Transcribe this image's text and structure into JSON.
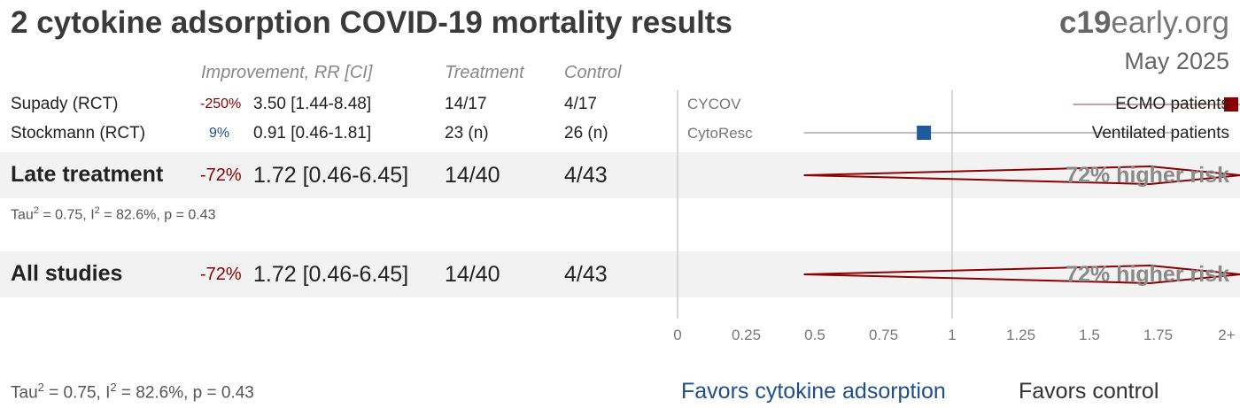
{
  "header": {
    "title": "2 cytokine adsorption COVID-19 mortality results",
    "brand_bold": "c19",
    "brand_rest": "early.org",
    "date": "May 2025"
  },
  "columns": {
    "improvement": "Improvement, RR [CI]",
    "treatment": "Treatment",
    "control": "Control"
  },
  "studies": [
    {
      "name": "Supady (RCT)",
      "improvement": "-250%",
      "rr_ci": "3.50 [1.44-8.48]",
      "treatment": "14/17",
      "control": "4/17",
      "plot_label": "CYCOV",
      "subgroup": "ECMO patients"
    },
    {
      "name": "Stockmann (RCT)",
      "improvement": "9%",
      "rr_ci": "0.91 [0.46-1.81]",
      "treatment": "23 (n)",
      "control": "26 (n)",
      "plot_label": "CytoResc",
      "subgroup": "Ventilated patients"
    }
  ],
  "late": {
    "name": "Late treatment",
    "improvement": "-72%",
    "rr_ci": "1.72 [0.46-6.45]",
    "treatment": "14/40",
    "control": "4/43",
    "risk_text": "72% higher risk"
  },
  "late_stats": {
    "pre": "Tau",
    "sup1": "2",
    "mid": " = 0.75, I",
    "sup2": "2",
    "post": " = 82.6%, p = 0.43"
  },
  "all": {
    "name": "All studies",
    "improvement": "-72%",
    "rr_ci": "1.72 [0.46-6.45]",
    "treatment": "14/40",
    "control": "4/43",
    "risk_text": "72% higher risk"
  },
  "all_stats": {
    "pre": "Tau",
    "sup1": "2",
    "mid": " = 0.75, I",
    "sup2": "2",
    "post": " = 82.6%, p = 0.43"
  },
  "footer": {
    "favors_treatment": "Favors cytokine adsorption",
    "favors_control": "Favors control"
  },
  "colors": {
    "accent_red": "#8b0000",
    "accent_blue": "#1f4e8c",
    "square_blue": "#1f5aa0"
  },
  "chart_data": {
    "type": "forest",
    "x_ticks": [
      "0",
      "0.25",
      "0.5",
      "0.75",
      "1",
      "1.25",
      "1.5",
      "1.75",
      "2+"
    ],
    "xlim": [
      0,
      2
    ],
    "reference_line": 1,
    "studies": [
      {
        "label": "CYCOV",
        "rr": 3.5,
        "ci_low": 1.44,
        "ci_high": 8.48,
        "color": "#8b0000"
      },
      {
        "label": "CytoResc",
        "rr": 0.91,
        "ci_low": 0.46,
        "ci_high": 1.81,
        "color": "#1f5aa0"
      }
    ],
    "pooled": [
      {
        "label": "Late treatment",
        "rr": 1.72,
        "ci_low": 0.46,
        "ci_high": 6.45
      },
      {
        "label": "All studies",
        "rr": 1.72,
        "ci_low": 0.46,
        "ci_high": 6.45
      }
    ]
  }
}
